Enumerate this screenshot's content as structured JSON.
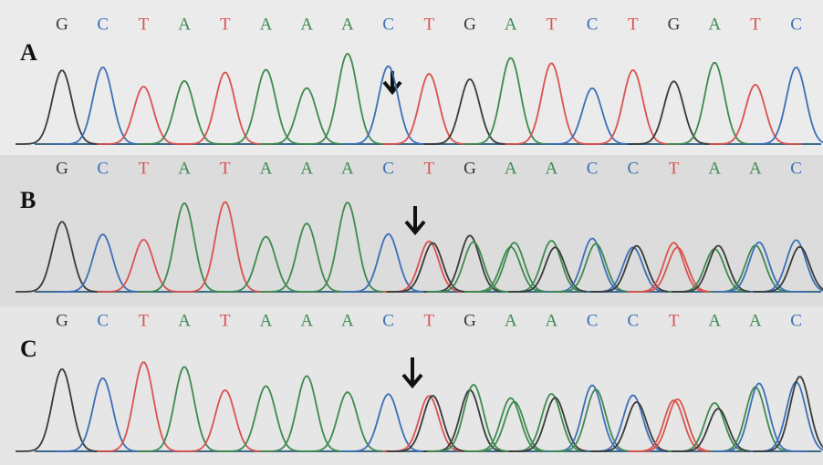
{
  "panels": [
    {
      "label": "A",
      "bases": [
        "G",
        "C",
        "T",
        "A",
        "T",
        "A",
        "A",
        "A",
        "C",
        "T",
        "G",
        "A",
        "T",
        "C",
        "T",
        "G",
        "A",
        "T",
        "C"
      ]
    },
    {
      "label": "B",
      "bases": [
        "G",
        "C",
        "T",
        "A",
        "T",
        "A",
        "A",
        "A",
        "C",
        "T",
        "G",
        "A",
        "A",
        "C",
        "C",
        "T",
        "A",
        "A",
        "C"
      ]
    },
    {
      "label": "C",
      "bases": [
        "G",
        "C",
        "T",
        "A",
        "T",
        "A",
        "A",
        "A",
        "C",
        "T",
        "G",
        "A",
        "A",
        "C",
        "C",
        "T",
        "A",
        "A",
        "C"
      ]
    }
  ],
  "base_colors": {
    "G": "#3a3a3a",
    "C": "#3d6fb8",
    "T": "#d9534f",
    "A": "#3f8a4f"
  }
}
